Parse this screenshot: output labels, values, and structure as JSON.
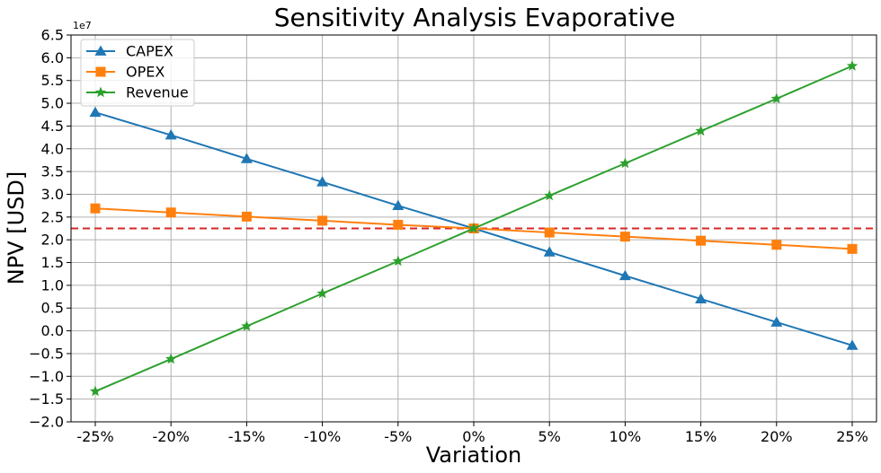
{
  "chart_data": {
    "type": "line",
    "title": "Sensitivity Analysis Evaporative",
    "xlabel": "Variation",
    "ylabel": "NPV [USD]",
    "y_offset_label": "1e7",
    "categories": [
      "-25%",
      "-20%",
      "-15%",
      "-10%",
      "-5%",
      "0%",
      "5%",
      "10%",
      "15%",
      "20%",
      "25%"
    ],
    "yticks": [
      "−2.0",
      "−1.5",
      "−1.0",
      "−0.5",
      "0.0",
      "0.5",
      "1.0",
      "1.5",
      "2.0",
      "2.5",
      "3.0",
      "3.5",
      "4.0",
      "4.5",
      "5.0",
      "5.5",
      "6.0",
      "6.5"
    ],
    "ylim": [
      -20000000,
      65000000
    ],
    "grid": true,
    "legend_position": "top-left",
    "baseline": {
      "value": 22500000,
      "color": "#d62728",
      "style": "dashed"
    },
    "series": [
      {
        "name": "CAPEX",
        "color": "#1f77b4",
        "marker": "triangle",
        "values": [
          48000000,
          43000000,
          37800000,
          32700000,
          27500000,
          22500000,
          17300000,
          12100000,
          7000000,
          1900000,
          -3200000
        ]
      },
      {
        "name": "OPEX",
        "color": "#ff7f0e",
        "marker": "square",
        "values": [
          26900000,
          26000000,
          25100000,
          24200000,
          23300000,
          22500000,
          21600000,
          20700000,
          19800000,
          18900000,
          18000000
        ]
      },
      {
        "name": "Revenue",
        "color": "#2ca02c",
        "marker": "star",
        "values": [
          -13300000,
          -6200000,
          1000000,
          8200000,
          15300000,
          22500000,
          29700000,
          36800000,
          43900000,
          51000000,
          58200000
        ]
      }
    ]
  }
}
